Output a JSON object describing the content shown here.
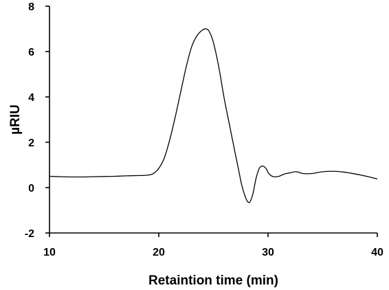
{
  "chart_data": {
    "type": "line",
    "title": "",
    "xlabel": "Retaintion time (min)",
    "ylabel": "µRIU",
    "xlim": [
      10,
      40
    ],
    "ylim": [
      -2,
      8
    ],
    "xticks": [
      10,
      20,
      30,
      40
    ],
    "yticks": [
      -2,
      0,
      2,
      4,
      6,
      8
    ],
    "grid": false,
    "legend": "none",
    "line_color": "#000000",
    "series": [
      {
        "x": [
          10,
          11,
          12,
          13,
          14,
          15,
          16,
          17,
          18,
          19,
          19.5,
          20,
          20.5,
          21,
          21.5,
          22,
          22.5,
          23,
          23.5,
          24,
          24.3,
          24.6,
          25,
          25.5,
          26,
          26.5,
          27,
          27.3,
          27.6,
          28,
          28.3,
          28.6,
          28.9,
          29.2,
          29.5,
          29.8,
          30.1,
          30.5,
          31,
          31.5,
          32,
          32.5,
          32.8,
          33.2,
          34,
          35,
          36,
          37,
          38,
          39,
          40
        ],
        "y": [
          0.5,
          0.48,
          0.47,
          0.47,
          0.48,
          0.49,
          0.5,
          0.52,
          0.53,
          0.55,
          0.62,
          0.85,
          1.3,
          2.1,
          3.1,
          4.2,
          5.3,
          6.2,
          6.7,
          6.95,
          7.0,
          6.9,
          6.4,
          5.3,
          3.9,
          2.7,
          1.5,
          0.8,
          0.1,
          -0.5,
          -0.65,
          -0.3,
          0.4,
          0.85,
          0.95,
          0.85,
          0.6,
          0.48,
          0.5,
          0.6,
          0.65,
          0.7,
          0.68,
          0.62,
          0.62,
          0.7,
          0.72,
          0.68,
          0.6,
          0.5,
          0.38
        ]
      }
    ]
  }
}
